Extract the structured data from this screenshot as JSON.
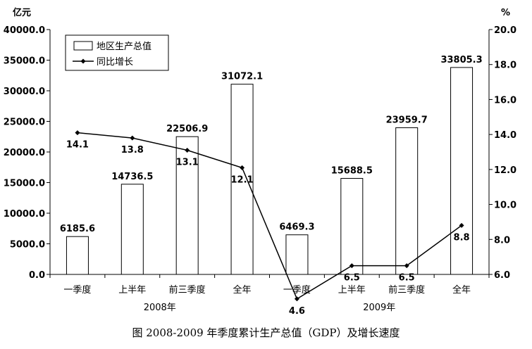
{
  "chart_data": {
    "type": "bar+line",
    "caption": "图  2008-2009 年季度累计生产总值（GDP）及增长速度",
    "left_unit": "亿元",
    "right_unit": "%",
    "categories": [
      "一季度",
      "上半年",
      "前三季度",
      "全年",
      "一季度",
      "上半年",
      "前三季度",
      "全年"
    ],
    "groups": [
      {
        "label": "2008年",
        "start": 0,
        "end": 3
      },
      {
        "label": "2009年",
        "start": 4,
        "end": 7
      }
    ],
    "left_axis": {
      "ylim": [
        0,
        40000
      ],
      "ticks": [
        0,
        5000,
        10000,
        15000,
        20000,
        25000,
        30000,
        35000,
        40000
      ],
      "tick_labels": [
        "0.0",
        "5000.0",
        "10000.0",
        "15000.0",
        "20000.0",
        "25000.0",
        "30000.0",
        "35000.0",
        "40000.0"
      ]
    },
    "right_axis": {
      "ylim": [
        6,
        20
      ],
      "ticks": [
        6,
        8,
        10,
        12,
        14,
        16,
        18,
        20
      ],
      "tick_labels": [
        "6.0",
        "8.0",
        "10.0",
        "12.0",
        "14.0",
        "16.0",
        "18.0",
        "20.0"
      ]
    },
    "series": [
      {
        "name": "地区生产总值",
        "kind": "bar",
        "axis": "left",
        "values": [
          6185.6,
          14736.5,
          22506.9,
          31072.1,
          6469.3,
          15688.5,
          23959.7,
          33805.3
        ],
        "labels": [
          "6185.6",
          "14736.5",
          "22506.9",
          "31072.1",
          "6469.3",
          "15688.5",
          "23959.7",
          "33805.3"
        ]
      },
      {
        "name": "同比增长",
        "kind": "line",
        "axis": "right",
        "values": [
          14.1,
          13.8,
          13.1,
          12.1,
          4.6,
          6.5,
          6.5,
          8.8
        ],
        "labels": [
          "14.1",
          "13.8",
          "13.1",
          "12.1",
          "4.6",
          "6.5",
          "6.5",
          "8.8"
        ]
      }
    ],
    "legend_position": "top-left",
    "grid": false
  }
}
